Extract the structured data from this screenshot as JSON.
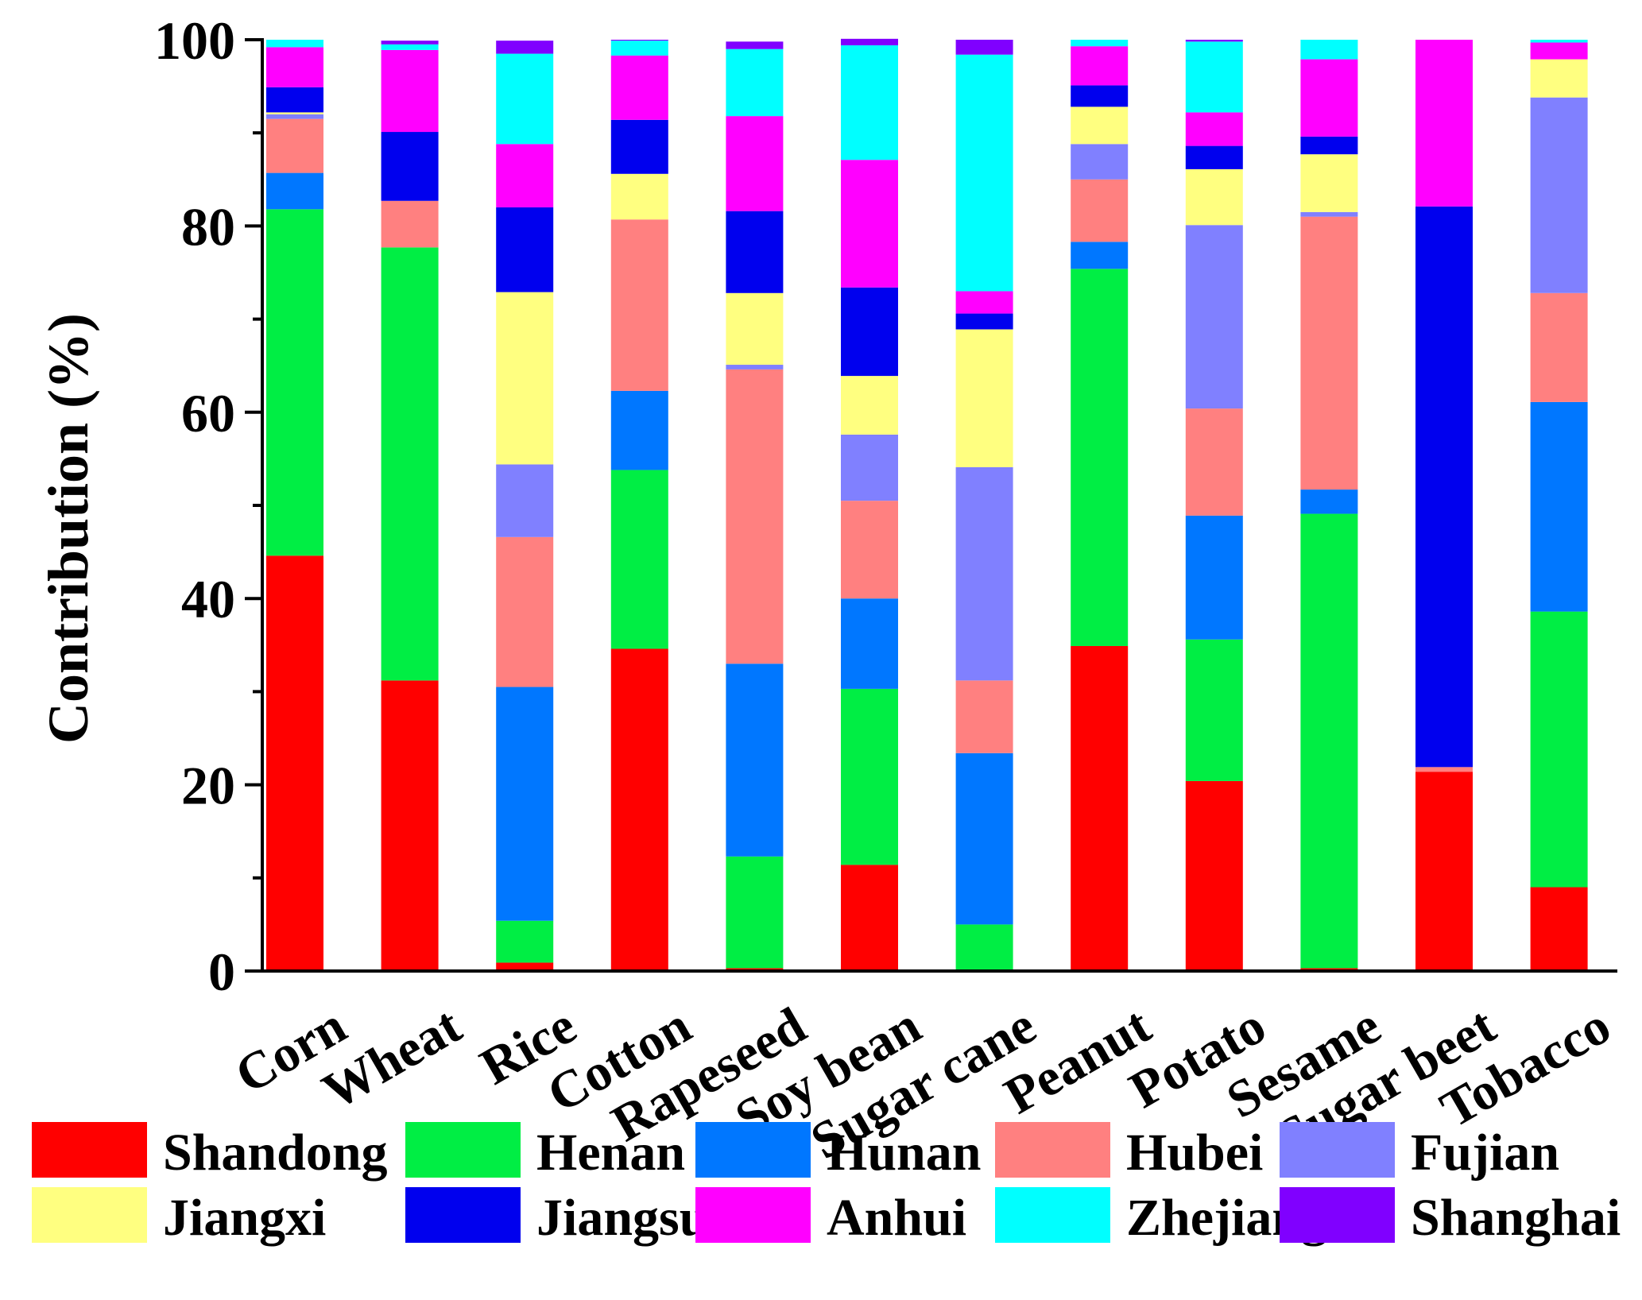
{
  "chart_data": {
    "type": "bar",
    "stacked": true,
    "title": "",
    "xlabel": "",
    "ylabel": "Contribution (%)",
    "ylim": [
      0,
      100
    ],
    "yticks": [
      0,
      20,
      40,
      60,
      80,
      100
    ],
    "yticks_minor": [
      10,
      30,
      50,
      70,
      90
    ],
    "grid": false,
    "legend_position": "bottom",
    "categories": [
      "Corn",
      "Wheat",
      "Rice",
      "Cotton",
      "Rapeseed",
      "Soy bean",
      "Sugar cane",
      "Peanut",
      "Potato",
      "Sesame",
      "Sugar beet",
      "Tobacco"
    ],
    "series": [
      {
        "name": "Shandong",
        "color": "#FF0000",
        "values": [
          44.6,
          31.2,
          0.9,
          34.6,
          0.3,
          11.4,
          0.0,
          34.9,
          20.4,
          0.3,
          21.4,
          9.0
        ]
      },
      {
        "name": "Henan",
        "color": "#00EE44",
        "values": [
          37.2,
          46.5,
          4.5,
          19.2,
          12.0,
          18.9,
          5.0,
          40.5,
          15.2,
          48.8,
          0.0,
          29.6
        ]
      },
      {
        "name": "Hunan",
        "color": "#0077FF",
        "values": [
          3.9,
          0.0,
          25.1,
          8.5,
          20.7,
          9.7,
          18.4,
          2.9,
          13.3,
          2.6,
          0.0,
          22.5
        ]
      },
      {
        "name": "Hubei",
        "color": "#FF8080",
        "values": [
          5.8,
          5.0,
          16.1,
          18.4,
          31.6,
          10.5,
          7.8,
          6.7,
          11.5,
          29.3,
          0.5,
          11.7
        ]
      },
      {
        "name": "Fujian",
        "color": "#8080FF",
        "values": [
          0.5,
          0.0,
          7.8,
          0.0,
          0.5,
          7.1,
          22.9,
          3.8,
          19.7,
          0.5,
          0.0,
          21.0
        ]
      },
      {
        "name": "Jiangxi",
        "color": "#FFFF80",
        "values": [
          0.2,
          0.0,
          18.5,
          4.9,
          7.7,
          6.3,
          14.8,
          4.0,
          6.0,
          6.2,
          0.0,
          4.1
        ]
      },
      {
        "name": "Jiangsu",
        "color": "#0000EE",
        "values": [
          2.7,
          7.4,
          9.1,
          5.8,
          8.8,
          9.5,
          1.7,
          2.3,
          2.5,
          1.9,
          60.2,
          0.0
        ]
      },
      {
        "name": "Anhui",
        "color": "#FF00FF",
        "values": [
          4.3,
          8.8,
          6.8,
          6.9,
          10.2,
          13.7,
          2.4,
          4.2,
          3.6,
          8.3,
          17.9,
          1.8
        ]
      },
      {
        "name": "Zhejiang",
        "color": "#00FFFF",
        "values": [
          0.8,
          0.6,
          9.7,
          1.6,
          7.2,
          12.3,
          25.4,
          0.7,
          7.6,
          2.1,
          0.0,
          0.3
        ]
      },
      {
        "name": "Shanghai",
        "color": "#8000FF",
        "values": [
          0.0,
          0.4,
          1.4,
          0.1,
          0.8,
          0.7,
          1.6,
          0.0,
          0.2,
          0.0,
          0.0,
          0.0
        ]
      }
    ]
  }
}
